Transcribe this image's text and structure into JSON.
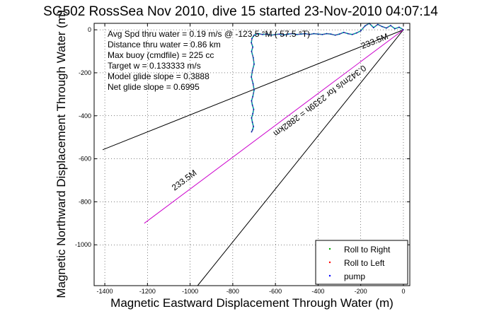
{
  "chart_data": {
    "type": "line",
    "title": "SG502 RossSea Nov 2010, dive 15 started 23-Nov-2010 04:07:14",
    "xlabel": "Magnetic Eastward Displacement Through Water (m)",
    "ylabel": "Magnetic Northward Displacement Through Water (m)",
    "xlim": [
      -1450,
      30
    ],
    "ylim": [
      -1190,
      30
    ],
    "grid": true,
    "xticks": [
      -1400,
      -1200,
      -1000,
      -800,
      -600,
      -400,
      -200,
      0
    ],
    "yticks": [
      0,
      -200,
      -400,
      -600,
      -800,
      -1000
    ],
    "annotations": [
      "Avg Spd thru water = 0.19 m/s @ -123.5 °M ( 57.5 °T)",
      "Distance thru water = 0.86 km",
      "Max buoy (cmdfile) = 225 cc",
      "Target w = 0.133333 m/s",
      "Model glide slope = 0.3888",
      "Net glide slope = 0.6995"
    ],
    "rotated_labels": [
      {
        "text": "233.5M",
        "x": -130,
        "y": -65
      },
      {
        "text": "233.5M",
        "x": -1020,
        "y": -710
      },
      {
        "text": "0.342m/s for 2339h = 2882km",
        "x": -400,
        "y": -320
      }
    ],
    "lines": [
      {
        "name": "glide-line-a",
        "color": "#000000",
        "x": [
          0,
          -1410
        ],
        "y": [
          0,
          -558
        ]
      },
      {
        "name": "glide-line-b",
        "color": "#000000",
        "x": [
          0,
          -965
        ],
        "y": [
          0,
          -1190
        ]
      },
      {
        "name": "course-line",
        "color": "#cc00cc",
        "x": [
          0,
          -1215
        ],
        "y": [
          0,
          -900
        ]
      }
    ],
    "track": {
      "x": [
        0,
        -20,
        -40,
        -60,
        -80,
        -100,
        -120,
        -140,
        -160,
        -180,
        -200,
        -220,
        -240,
        -260,
        -280,
        -300,
        -320,
        -340,
        -360,
        -380,
        -400,
        -420,
        -440,
        -460,
        -480,
        -500,
        -520,
        -540,
        -560,
        -580,
        -600,
        -620,
        -640,
        -660,
        -680,
        -700,
        -710,
        -713,
        -706,
        -712,
        -704,
        -700,
        -708,
        -713,
        -705,
        -700,
        -706,
        -712,
        -708,
        -702,
        -706,
        -712,
        -708,
        -703,
        -707,
        -712
      ],
      "y": [
        0,
        12,
        5,
        20,
        8,
        15,
        25,
        10,
        30,
        18,
        -5,
        -15,
        -22,
        -18,
        -12,
        -20,
        -25,
        -20,
        -18,
        -22,
        -20,
        -18,
        -22,
        -18,
        -20,
        -22,
        -18,
        -20,
        -24,
        -20,
        -22,
        -25,
        -20,
        -22,
        -18,
        -25,
        -40,
        -60,
        -80,
        -100,
        -130,
        -160,
        -190,
        -220,
        -250,
        -280,
        -310,
        -330,
        -350,
        -370,
        -390,
        -410,
        -430,
        -450,
        -465,
        -475
      ]
    },
    "legend": {
      "placement": "bottom-right",
      "entries": [
        {
          "label": "Roll to Right",
          "color": "#00aa00"
        },
        {
          "label": "Roll to Left",
          "color": "#ff0000"
        },
        {
          "label": "pump",
          "color": "#0000ff"
        }
      ]
    }
  }
}
